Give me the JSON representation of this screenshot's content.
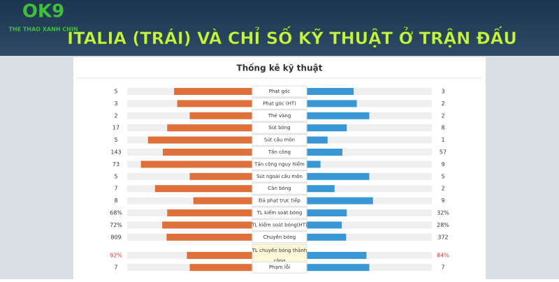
{
  "header": {
    "logo": "OK9",
    "tagline": "THE THAO XANH CHIN",
    "title": "ITALIA (TRÁI) VÀ CHỈ SỐ KỸ THUẬT Ở TRẬN ĐẤU"
  },
  "panel": {
    "title": "Thống kê kỹ thuật",
    "left_color": "#e0703a",
    "right_color": "#3a97d6",
    "rows": [
      {
        "label": "Phạt góc",
        "left": 5,
        "right": 3
      },
      {
        "label": "Phạt góc (HT)",
        "left": 3,
        "right": 2
      },
      {
        "label": "Thẻ vàng",
        "left": 2,
        "right": 2
      },
      {
        "label": "Sút bóng",
        "left": 17,
        "right": 8
      },
      {
        "label": "Sút cầu môn",
        "left": 5,
        "right": 1
      },
      {
        "label": "Tấn công",
        "left": 143,
        "right": 57
      },
      {
        "label": "Tấn công nguy hiểm",
        "left": 73,
        "right": 9
      },
      {
        "label": "Sút ngoài cầu môn",
        "left": 5,
        "right": 5
      },
      {
        "label": "Cản bóng",
        "left": 7,
        "right": 2
      },
      {
        "label": "Đá phạt trực tiếp",
        "left": 8,
        "right": 9
      },
      {
        "label": "TL kiểm soát bóng",
        "left": {
          "value": 68,
          "label": "68%"
        },
        "right": {
          "value": 32,
          "label": "32%"
        }
      },
      {
        "label": "TL kiểm soát bóng(HT)",
        "left": {
          "value": 72,
          "label": "72%"
        },
        "right": {
          "value": 28,
          "label": "28%"
        }
      },
      {
        "label": "Chuyền bóng",
        "left": 809,
        "right": 372
      },
      {
        "label": "TL chuyền bóng thành công",
        "left": {
          "value": 92,
          "label": "92%"
        },
        "right": {
          "value": 84,
          "label": "84%"
        },
        "label_color": "#d9342b"
      },
      {
        "label": "Phạm lỗi",
        "left": 7,
        "right": 7
      }
    ]
  }
}
